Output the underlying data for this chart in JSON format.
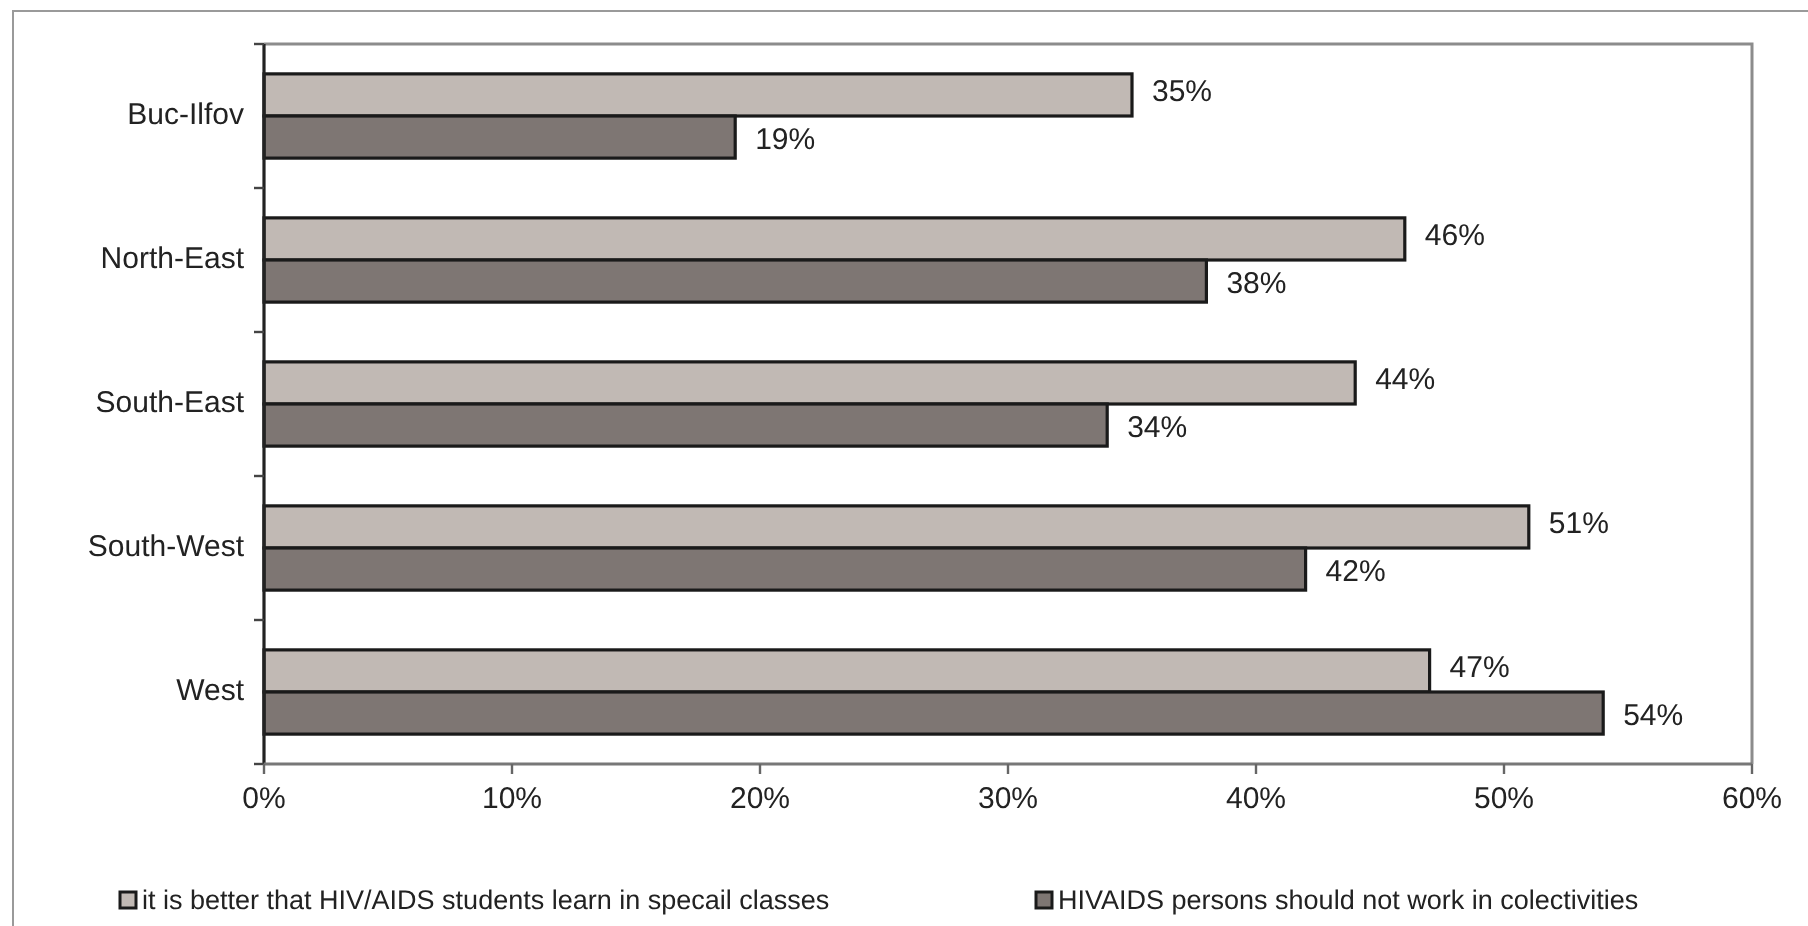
{
  "chart_data": {
    "type": "bar",
    "orientation": "horizontal",
    "categories": [
      "Buc-Ilfov",
      "North-East",
      "South-East",
      "South-West",
      "West"
    ],
    "series": [
      {
        "name": "it is better that HIV/AIDS students learn in specail classes",
        "color": "#c1b9b4",
        "values": [
          35,
          46,
          44,
          51,
          47
        ],
        "value_labels": [
          "35%",
          "46%",
          "44%",
          "51%",
          "47%"
        ]
      },
      {
        "name": "HIVAIDS persons should not work in colectivities",
        "color": "#7e7673",
        "values": [
          19,
          38,
          34,
          42,
          54
        ],
        "value_labels": [
          "19%",
          "38%",
          "34%",
          "42%",
          "54%"
        ]
      }
    ],
    "xlim": [
      0,
      60
    ],
    "xticks": [
      {
        "value": 0,
        "label": "0%"
      },
      {
        "value": 10,
        "label": "10%"
      },
      {
        "value": 20,
        "label": "20%"
      },
      {
        "value": 30,
        "label": "30%"
      },
      {
        "value": 40,
        "label": "40%"
      },
      {
        "value": 50,
        "label": "50%"
      },
      {
        "value": 60,
        "label": "60%"
      }
    ],
    "grid": false,
    "legend": "bottom"
  }
}
